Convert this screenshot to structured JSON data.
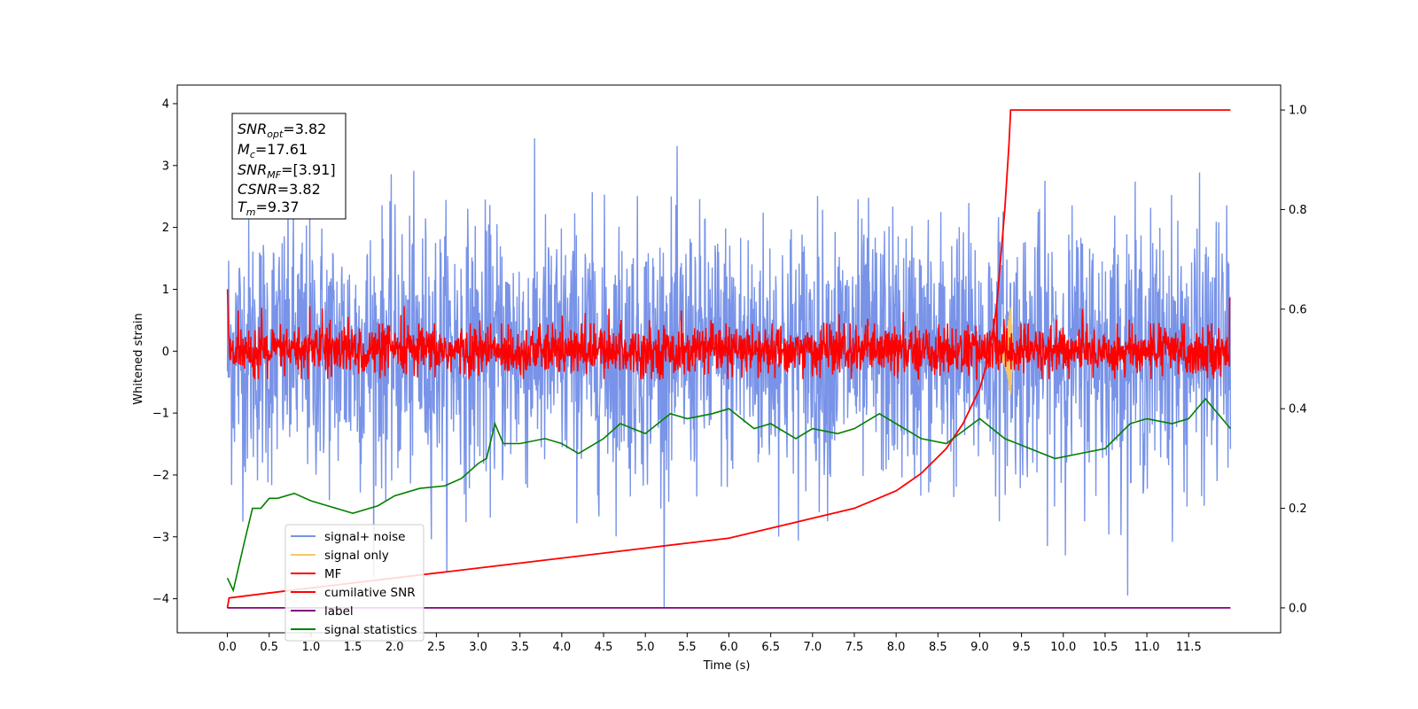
{
  "colors": {
    "signal_noise": "#7893e8",
    "signal_only": "#f5c76a",
    "mf": "#ff0000",
    "cumulative_snr": "#ff0000",
    "label": "#800080",
    "signal_statistics": "#008000"
  },
  "info_box": {
    "lines": [
      {
        "main": "SNR",
        "sub": "opt",
        "rest": "=3.82"
      },
      {
        "main": "M",
        "sub": "c",
        "rest": "=17.61"
      },
      {
        "main": "SNR",
        "sub": "MF",
        "rest": "=[3.91]"
      },
      {
        "main": "CSNR",
        "sub": "",
        "rest": "=3.82"
      },
      {
        "main": "T",
        "sub": "m",
        "rest": "=9.37"
      }
    ]
  },
  "legend": {
    "placement": "lower-left",
    "entries": [
      "signal+ noise",
      "signal only",
      "MF",
      "cumilative SNR",
      "label",
      "signal statistics"
    ]
  },
  "chart_data": {
    "type": "line",
    "title": "",
    "xlabel": "Time (s)",
    "ylabel": "Whitened strain",
    "y2label": "",
    "xlim": [
      -0.6,
      12.6
    ],
    "ylim": [
      -4.55,
      4.3
    ],
    "y2lim": [
      -0.05,
      1.05
    ],
    "xticks": [
      0.0,
      0.5,
      1.0,
      1.5,
      2.0,
      2.5,
      3.0,
      3.5,
      4.0,
      4.5,
      5.0,
      5.5,
      6.0,
      6.5,
      7.0,
      7.5,
      8.0,
      8.5,
      9.0,
      9.5,
      10.0,
      10.5,
      11.0,
      11.5
    ],
    "xtick_labels": [
      "0.0",
      "0.5",
      "1.0",
      "1.5",
      "2.0",
      "2.5",
      "3.0",
      "3.5",
      "4.0",
      "4.5",
      "5.0",
      "5.5",
      "6.0",
      "6.5",
      "7.0",
      "7.5",
      "8.0",
      "8.5",
      "9.0",
      "9.5",
      "10.0",
      "10.5",
      "11.0",
      "11.5"
    ],
    "yticks": [
      -4,
      -3,
      -2,
      -1,
      0,
      1,
      2,
      3,
      4
    ],
    "ytick_labels": [
      "−4",
      "−3",
      "−2",
      "−1",
      "0",
      "1",
      "2",
      "3",
      "4"
    ],
    "y2ticks": [
      0.0,
      0.2,
      0.4,
      0.6,
      0.8,
      1.0
    ],
    "y2tick_labels": [
      "0.0",
      "0.2",
      "0.4",
      "0.6",
      "0.8",
      "1.0"
    ],
    "grid": false,
    "series": [
      {
        "name": "signal+ noise",
        "axis": "left",
        "x_range": [
          0.0,
          12.0
        ],
        "noise_std": 1.05,
        "value_range": [
          -4.15,
          3.9
        ],
        "approx_envelope": [
          -2.6,
          2.6
        ]
      },
      {
        "name": "signal only",
        "axis": "left",
        "x_range": [
          9.2,
          9.4
        ],
        "min": -0.75,
        "max": 0.8,
        "peak_time": 9.37
      },
      {
        "name": "MF",
        "axis": "left",
        "x_range": [
          0.0,
          12.0
        ],
        "value_range": [
          -0.45,
          1.0
        ],
        "typical_range": [
          -0.45,
          0.45
        ]
      },
      {
        "name": "cumilative SNR",
        "axis": "right",
        "x": [
          0.0,
          0.02,
          0.5,
          1.0,
          1.5,
          2.0,
          2.5,
          3.0,
          3.5,
          4.0,
          4.5,
          5.0,
          5.5,
          6.0,
          6.5,
          7.0,
          7.5,
          8.0,
          8.3,
          8.6,
          8.8,
          9.0,
          9.1,
          9.2,
          9.25,
          9.3,
          9.35,
          9.37,
          9.5,
          10.0,
          11.0,
          12.0
        ],
        "values": [
          0.0,
          0.02,
          0.03,
          0.04,
          0.05,
          0.06,
          0.07,
          0.08,
          0.09,
          0.1,
          0.11,
          0.12,
          0.13,
          0.14,
          0.16,
          0.18,
          0.2,
          0.235,
          0.27,
          0.32,
          0.37,
          0.44,
          0.5,
          0.6,
          0.7,
          0.8,
          0.93,
          1.0,
          1.0,
          1.0,
          1.0,
          1.0
        ]
      },
      {
        "name": "label",
        "axis": "right",
        "x": [
          0.0,
          12.0
        ],
        "values": [
          0.0,
          0.0
        ]
      },
      {
        "name": "signal statistics",
        "axis": "right",
        "x": [
          0.0,
          0.07,
          0.2,
          0.3,
          0.4,
          0.5,
          0.6,
          0.8,
          1.0,
          1.2,
          1.5,
          1.8,
          2.0,
          2.3,
          2.6,
          2.8,
          3.0,
          3.1,
          3.2,
          3.3,
          3.5,
          3.8,
          4.0,
          4.2,
          4.5,
          4.7,
          5.0,
          5.3,
          5.5,
          5.8,
          6.0,
          6.3,
          6.5,
          6.8,
          7.0,
          7.3,
          7.5,
          7.8,
          8.0,
          8.3,
          8.6,
          9.0,
          9.3,
          9.6,
          9.9,
          10.2,
          10.5,
          10.8,
          11.0,
          11.3,
          11.5,
          11.7,
          12.0
        ],
        "values": [
          0.06,
          0.035,
          0.13,
          0.2,
          0.2,
          0.22,
          0.22,
          0.23,
          0.215,
          0.205,
          0.19,
          0.205,
          0.225,
          0.24,
          0.245,
          0.26,
          0.29,
          0.3,
          0.37,
          0.33,
          0.33,
          0.34,
          0.33,
          0.31,
          0.34,
          0.37,
          0.35,
          0.39,
          0.38,
          0.39,
          0.4,
          0.36,
          0.37,
          0.34,
          0.36,
          0.35,
          0.36,
          0.39,
          0.37,
          0.34,
          0.33,
          0.38,
          0.34,
          0.32,
          0.3,
          0.31,
          0.32,
          0.37,
          0.38,
          0.37,
          0.38,
          0.42,
          0.36
        ]
      }
    ]
  }
}
